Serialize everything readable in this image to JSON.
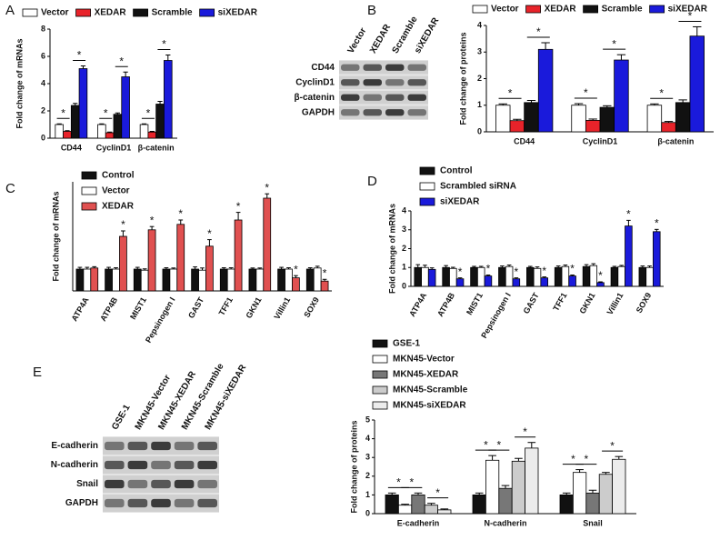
{
  "panels": [
    "A",
    "B",
    "C",
    "D",
    "E"
  ],
  "blots": [
    {
      "lanes": [
        "Vector",
        "XEDAR",
        "Scramble",
        "siXEDAR"
      ],
      "rows": [
        "CD44",
        "CyclinD1",
        "β-catenin",
        "GAPDH"
      ]
    },
    {
      "lanes": [
        "GSE-1",
        "MKN45-Vector",
        "MKN45-XEDAR",
        "MKN45-Scramble",
        "MKN45-siXEDAR"
      ],
      "rows": [
        "E-cadherin",
        "N-cadherin",
        "Snail",
        "GAPDH"
      ]
    }
  ],
  "chart_data": [
    {
      "type": "bar",
      "ylabel": "Fold change of mRNAs",
      "legend": "top",
      "ylim": [
        0,
        8
      ],
      "yticks": [
        0,
        2,
        4,
        6,
        8
      ],
      "categories": [
        "CD44",
        "CyclinD1",
        "β-catenin"
      ],
      "series": [
        {
          "name": "Vector",
          "color": "#ffffff",
          "values": [
            1.0,
            1.0,
            1.0
          ],
          "errors": [
            0.05,
            0.05,
            0.05
          ]
        },
        {
          "name": "XEDAR",
          "color": "#e8232a",
          "values": [
            0.5,
            0.4,
            0.45
          ],
          "errors": [
            0.05,
            0.05,
            0.05
          ]
        },
        {
          "name": "Scramble",
          "color": "#111111",
          "values": [
            2.4,
            1.75,
            2.5
          ],
          "errors": [
            0.15,
            0.1,
            0.2
          ]
        },
        {
          "name": "siXEDAR",
          "color": "#1a1adb",
          "values": [
            5.1,
            4.5,
            5.7
          ],
          "errors": [
            0.2,
            0.35,
            0.4
          ]
        }
      ],
      "annotations": [
        {
          "label": "*",
          "category": "CD44",
          "series": [
            "Vector",
            "XEDAR"
          ]
        },
        {
          "label": "*",
          "category": "CD44",
          "series": [
            "Scramble",
            "siXEDAR"
          ]
        },
        {
          "label": "*",
          "category": "CyclinD1",
          "series": [
            "Vector",
            "XEDAR"
          ]
        },
        {
          "label": "*",
          "category": "CyclinD1",
          "series": [
            "Scramble",
            "siXEDAR"
          ]
        },
        {
          "label": "*",
          "category": "β-catenin",
          "series": [
            "Vector",
            "XEDAR"
          ]
        },
        {
          "label": "*",
          "category": "β-catenin",
          "series": [
            "Scramble",
            "siXEDAR"
          ]
        }
      ]
    },
    {
      "type": "bar",
      "ylabel": "Fold change of proteins",
      "legend": "top",
      "ylim": [
        0,
        4
      ],
      "yticks": [
        0,
        1,
        2,
        3,
        4
      ],
      "categories": [
        "CD44",
        "CyclinD1",
        "β-catenin"
      ],
      "series": [
        {
          "name": "Vector",
          "color": "#ffffff",
          "values": [
            1.0,
            1.0,
            1.0
          ],
          "errors": [
            0.05,
            0.06,
            0.05
          ]
        },
        {
          "name": "XEDAR",
          "color": "#e8232a",
          "values": [
            0.42,
            0.43,
            0.35
          ],
          "errors": [
            0.05,
            0.05,
            0.04
          ]
        },
        {
          "name": "Scramble",
          "color": "#111111",
          "values": [
            1.1,
            0.92,
            1.1
          ],
          "errors": [
            0.08,
            0.06,
            0.1
          ]
        },
        {
          "name": "siXEDAR",
          "color": "#1a1adb",
          "values": [
            3.1,
            2.7,
            3.6
          ],
          "errors": [
            0.25,
            0.2,
            0.35
          ]
        }
      ],
      "annotations": [
        {
          "label": "*",
          "category": "CD44",
          "series": [
            "Vector",
            "XEDAR"
          ]
        },
        {
          "label": "*",
          "category": "CD44",
          "series": [
            "Scramble",
            "siXEDAR"
          ]
        },
        {
          "label": "*",
          "category": "CyclinD1",
          "series": [
            "Vector",
            "XEDAR"
          ]
        },
        {
          "label": "*",
          "category": "CyclinD1",
          "series": [
            "Scramble",
            "siXEDAR"
          ]
        },
        {
          "label": "*",
          "category": "β-catenin",
          "series": [
            "Vector",
            "XEDAR"
          ]
        },
        {
          "label": "*",
          "category": "β-catenin",
          "series": [
            "Scramble",
            "siXEDAR"
          ]
        }
      ]
    },
    {
      "type": "bar",
      "ylabel": "Fold change of  mRNAs",
      "legend": "top-left",
      "ylim": [
        0,
        5
      ],
      "categories": [
        "ATP4A",
        "ATP4B",
        "MIST1",
        "Pepsinogen I",
        "GAST",
        "TFF1",
        "GKN1",
        "Villin1",
        "SOX9"
      ],
      "series": [
        {
          "name": "Control",
          "color": "#111111",
          "values": [
            1.0,
            1.0,
            1.0,
            1.0,
            1.0,
            1.0,
            1.0,
            1.0,
            1.0
          ],
          "errors": [
            0.08,
            0.08,
            0.08,
            0.06,
            0.1,
            0.06,
            0.05,
            0.08,
            0.06
          ]
        },
        {
          "name": "Vector",
          "color": "#ffffff",
          "values": [
            1.0,
            1.0,
            0.95,
            1.0,
            0.95,
            1.0,
            1.0,
            1.0,
            1.05
          ],
          "errors": [
            0.08,
            0.06,
            0.06,
            0.05,
            0.1,
            0.06,
            0.05,
            0.06,
            0.08
          ]
        },
        {
          "name": "XEDAR",
          "color": "#e05050",
          "values": [
            1.05,
            2.5,
            2.8,
            3.05,
            2.05,
            3.25,
            4.25,
            0.6,
            0.45
          ],
          "errors": [
            0.06,
            0.25,
            0.15,
            0.2,
            0.3,
            0.35,
            0.2,
            0.1,
            0.08
          ]
        }
      ],
      "annotations": [
        {
          "label": "*",
          "category": "ATP4B",
          "series": [
            "XEDAR"
          ]
        },
        {
          "label": "*",
          "category": "MIST1",
          "series": [
            "XEDAR"
          ]
        },
        {
          "label": "*",
          "category": "Pepsinogen I",
          "series": [
            "XEDAR"
          ]
        },
        {
          "label": "*",
          "category": "GAST",
          "series": [
            "XEDAR"
          ]
        },
        {
          "label": "*",
          "category": "TFF1",
          "series": [
            "XEDAR"
          ]
        },
        {
          "label": "*",
          "category": "GKN1",
          "series": [
            "XEDAR"
          ]
        },
        {
          "label": "*",
          "category": "Villin1",
          "series": [
            "XEDAR"
          ]
        },
        {
          "label": "*",
          "category": "SOX9",
          "series": [
            "XEDAR"
          ]
        }
      ]
    },
    {
      "type": "bar",
      "ylabel": "Fold change of  mRNAs",
      "legend": "top-left",
      "ylim": [
        0,
        4
      ],
      "yticks": [
        0,
        1,
        2,
        3,
        4
      ],
      "categories": [
        "ATP4A",
        "ATP4B",
        "MIST1",
        "Pepsinogen I",
        "GAST",
        "TFF1",
        "GKN1",
        "Villin1",
        "SOX9"
      ],
      "series": [
        {
          "name": "Control",
          "color": "#111111",
          "values": [
            1.0,
            1.0,
            1.0,
            1.0,
            1.0,
            1.0,
            1.05,
            1.0,
            1.0
          ],
          "errors": [
            0.15,
            0.1,
            0.06,
            0.08,
            0.06,
            0.08,
            0.1,
            0.06,
            0.08
          ]
        },
        {
          "name": "Scrambled siRNA",
          "color": "#ffffff",
          "values": [
            1.0,
            0.95,
            1.0,
            1.05,
            0.95,
            1.05,
            1.1,
            1.05,
            1.0
          ],
          "errors": [
            0.12,
            0.06,
            0.06,
            0.08,
            0.08,
            0.08,
            0.1,
            0.06,
            0.08
          ]
        },
        {
          "name": "siXEDAR",
          "color": "#1a1adb",
          "values": [
            0.9,
            0.4,
            0.55,
            0.4,
            0.45,
            0.55,
            0.2,
            3.2,
            2.9
          ],
          "errors": [
            0.08,
            0.05,
            0.05,
            0.05,
            0.05,
            0.05,
            0.04,
            0.3,
            0.12
          ]
        }
      ],
      "annotations": [
        {
          "label": "*",
          "category": "ATP4B",
          "series": [
            "siXEDAR"
          ]
        },
        {
          "label": "*",
          "category": "MIST1",
          "series": [
            "siXEDAR"
          ]
        },
        {
          "label": "*",
          "category": "Pepsinogen I",
          "series": [
            "siXEDAR"
          ]
        },
        {
          "label": "*",
          "category": "GAST",
          "series": [
            "siXEDAR"
          ]
        },
        {
          "label": "*",
          "category": "TFF1",
          "series": [
            "siXEDAR"
          ]
        },
        {
          "label": "*",
          "category": "GKN1",
          "series": [
            "siXEDAR"
          ]
        },
        {
          "label": "*",
          "category": "Villin1",
          "series": [
            "siXEDAR"
          ]
        },
        {
          "label": "*",
          "category": "SOX9",
          "series": [
            "siXEDAR"
          ]
        }
      ]
    },
    {
      "type": "bar",
      "ylabel": "Fold change of proteins",
      "legend": "top-left",
      "ylim": [
        0,
        5
      ],
      "yticks": [
        0,
        1,
        2,
        3,
        4,
        5
      ],
      "categories": [
        "E-cadherin",
        "N-cadherin",
        "Snail"
      ],
      "series": [
        {
          "name": "GSE-1",
          "color": "#111111",
          "values": [
            1.0,
            1.0,
            1.0
          ],
          "errors": [
            0.1,
            0.1,
            0.1
          ]
        },
        {
          "name": "MKN45-Vector",
          "color": "#ffffff",
          "values": [
            0.45,
            2.85,
            2.2
          ],
          "errors": [
            0.05,
            0.25,
            0.15
          ]
        },
        {
          "name": "MKN45-XEDAR",
          "color": "#777777",
          "values": [
            1.0,
            1.35,
            1.1
          ],
          "errors": [
            0.1,
            0.15,
            0.15
          ]
        },
        {
          "name": "MKN45-Scramble",
          "color": "#cccccc",
          "values": [
            0.45,
            2.8,
            2.1
          ],
          "errors": [
            0.1,
            0.15,
            0.1
          ]
        },
        {
          "name": "MKN45-siXEDAR",
          "color": "#ececec",
          "values": [
            0.2,
            3.5,
            2.9
          ],
          "errors": [
            0.05,
            0.3,
            0.15
          ]
        }
      ],
      "annotations": [
        {
          "label": "*",
          "category": "E-cadherin",
          "series": [
            "GSE-1",
            "MKN45-Vector"
          ]
        },
        {
          "label": "*",
          "category": "E-cadherin",
          "series": [
            "MKN45-Vector",
            "MKN45-XEDAR"
          ]
        },
        {
          "label": "*",
          "category": "E-cadherin",
          "series": [
            "MKN45-Scramble",
            "MKN45-siXEDAR"
          ]
        },
        {
          "label": "*",
          "category": "N-cadherin",
          "series": [
            "GSE-1",
            "MKN45-Vector"
          ]
        },
        {
          "label": "*",
          "category": "N-cadherin",
          "series": [
            "MKN45-Vector",
            "MKN45-XEDAR"
          ]
        },
        {
          "label": "*",
          "category": "N-cadherin",
          "series": [
            "MKN45-Scramble",
            "MKN45-siXEDAR"
          ]
        },
        {
          "label": "*",
          "category": "Snail",
          "series": [
            "GSE-1",
            "MKN45-Vector"
          ]
        },
        {
          "label": "*",
          "category": "Snail",
          "series": [
            "MKN45-Vector",
            "MKN45-XEDAR"
          ]
        },
        {
          "label": "*",
          "category": "Snail",
          "series": [
            "MKN45-Scramble",
            "MKN45-siXEDAR"
          ]
        }
      ]
    }
  ]
}
